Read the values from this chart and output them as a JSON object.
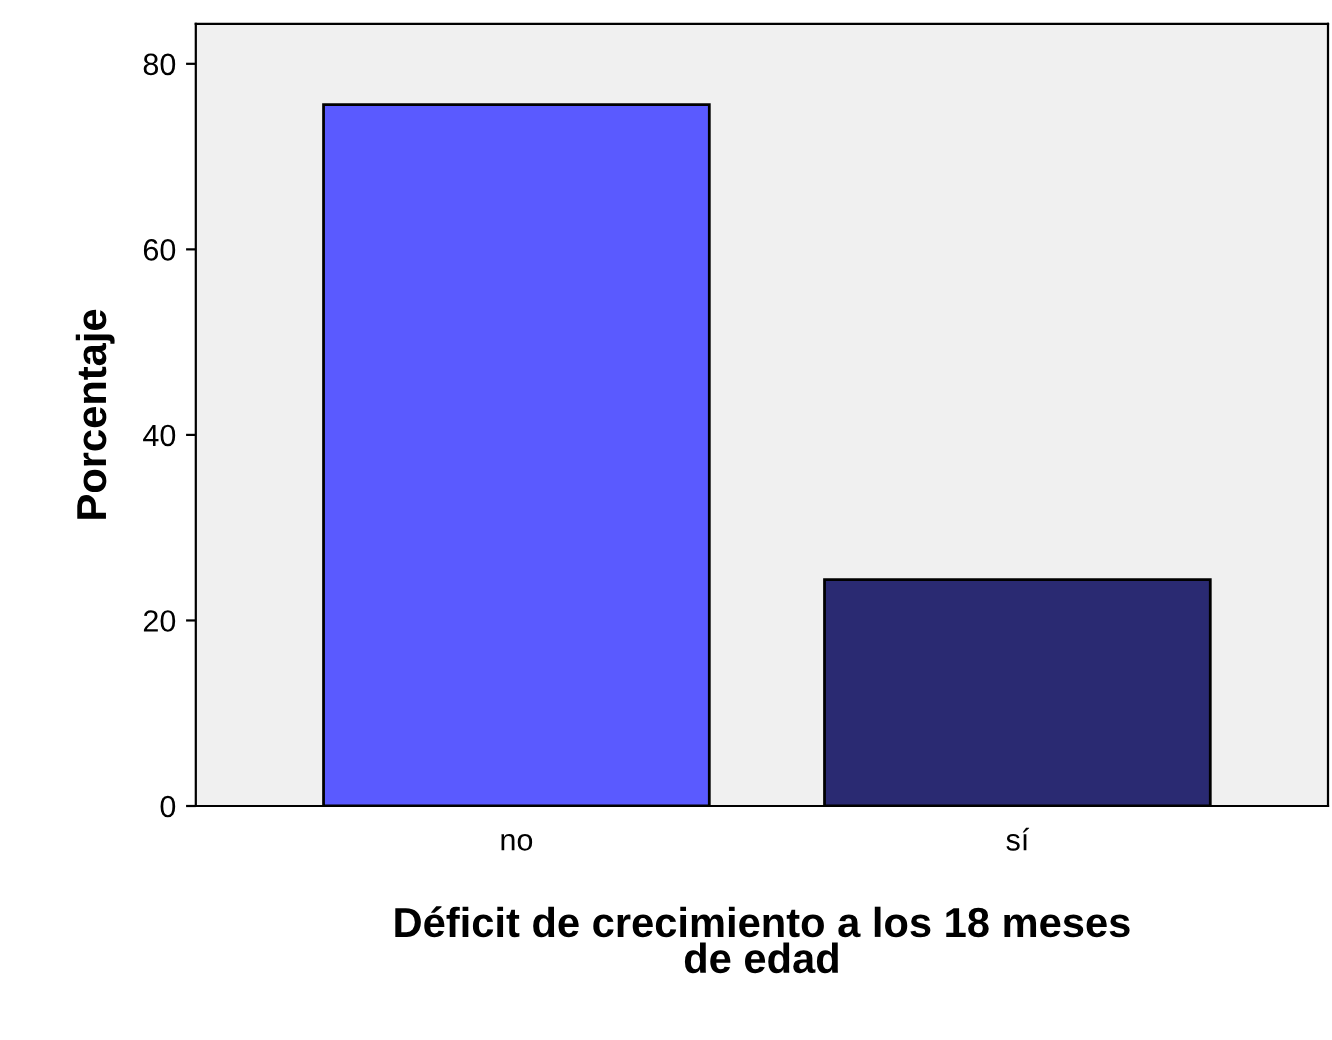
{
  "chart_data": {
    "type": "bar",
    "xlabel": "Déficit de crecimiento a los 18 meses\nde edad",
    "ylabel": "Porcentaje",
    "categories": [
      "no",
      "sí"
    ],
    "series": [
      {
        "values": [
          75.6,
          24.4
        ],
        "colors": [
          "#5a5aff",
          "#2a2a72"
        ]
      }
    ],
    "ylim": [
      0,
      84.3
    ],
    "yticks": [
      0,
      20,
      40,
      60,
      80
    ],
    "grid": false,
    "legend": false
  }
}
